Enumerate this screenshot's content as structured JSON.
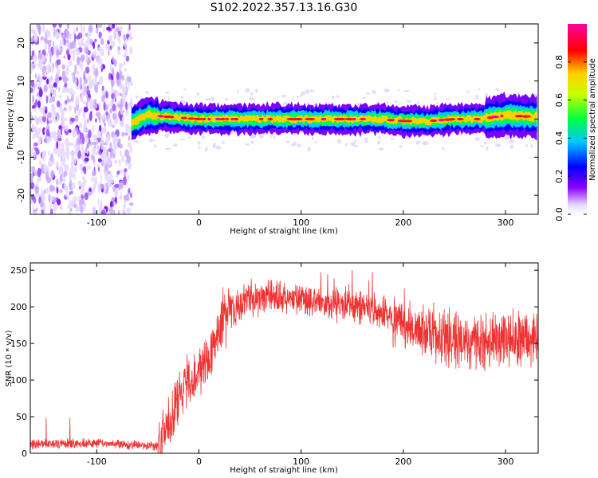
{
  "title": "S102.2022.357.13.16.G30",
  "chart_data": [
    {
      "type": "heatmap",
      "xlabel": "Height of straight line (km)",
      "ylabel": "Frequency (Hz)",
      "xlim": [
        -165,
        332
      ],
      "ylim": [
        -25,
        25
      ],
      "x_ticks": [
        -100,
        0,
        100,
        200,
        300
      ],
      "y_ticks": [
        -20,
        -10,
        0,
        10,
        20
      ],
      "noise_region": [
        -165,
        -66
      ],
      "signal_start": -66,
      "colorbar": {
        "label": "Normalized spectral amplitude",
        "range": [
          0.0,
          1.0
        ],
        "ticks": [
          0.0,
          0.2,
          0.4,
          0.6,
          0.8
        ],
        "colormap": [
          "#ffffff",
          "#e8d8ff",
          "#8800ff",
          "#0000ff",
          "#00c8ff",
          "#00ff40",
          "#c8ff00",
          "#ffd000",
          "#ff0000",
          "#ff0080",
          "#ff00a0"
        ]
      },
      "signal_band": {
        "x": [
          -66,
          -50,
          -25,
          0,
          25,
          50,
          75,
          100,
          125,
          150,
          175,
          200,
          225,
          250,
          275,
          300,
          332
        ],
        "center_hz": [
          -1,
          1,
          0.5,
          0,
          0,
          0,
          0,
          0,
          0,
          0,
          0,
          -0.5,
          -0.5,
          0,
          0,
          1,
          0.5
        ]
      }
    },
    {
      "type": "line",
      "xlabel": "Height of straight line (km)",
      "ylabel": "SNR (10 * v/v)",
      "xlim": [
        -165,
        332
      ],
      "ylim": [
        0,
        260
      ],
      "x_ticks": [
        -100,
        0,
        100,
        200,
        300
      ],
      "y_ticks": [
        0,
        50,
        100,
        150,
        200,
        250
      ],
      "series": [
        {
          "color": "#ee3333",
          "x": [
            -165,
            -140,
            -100,
            -60,
            -45,
            -38,
            -30,
            -20,
            -10,
            0,
            10,
            20,
            30,
            50,
            70,
            100,
            130,
            160,
            190,
            220,
            250,
            280,
            300,
            332
          ],
          "y": [
            12,
            13,
            14,
            11,
            10,
            8,
            40,
            80,
            100,
            110,
            120,
            170,
            195,
            210,
            215,
            210,
            205,
            200,
            185,
            165,
            155,
            150,
            155,
            160
          ]
        }
      ]
    }
  ]
}
